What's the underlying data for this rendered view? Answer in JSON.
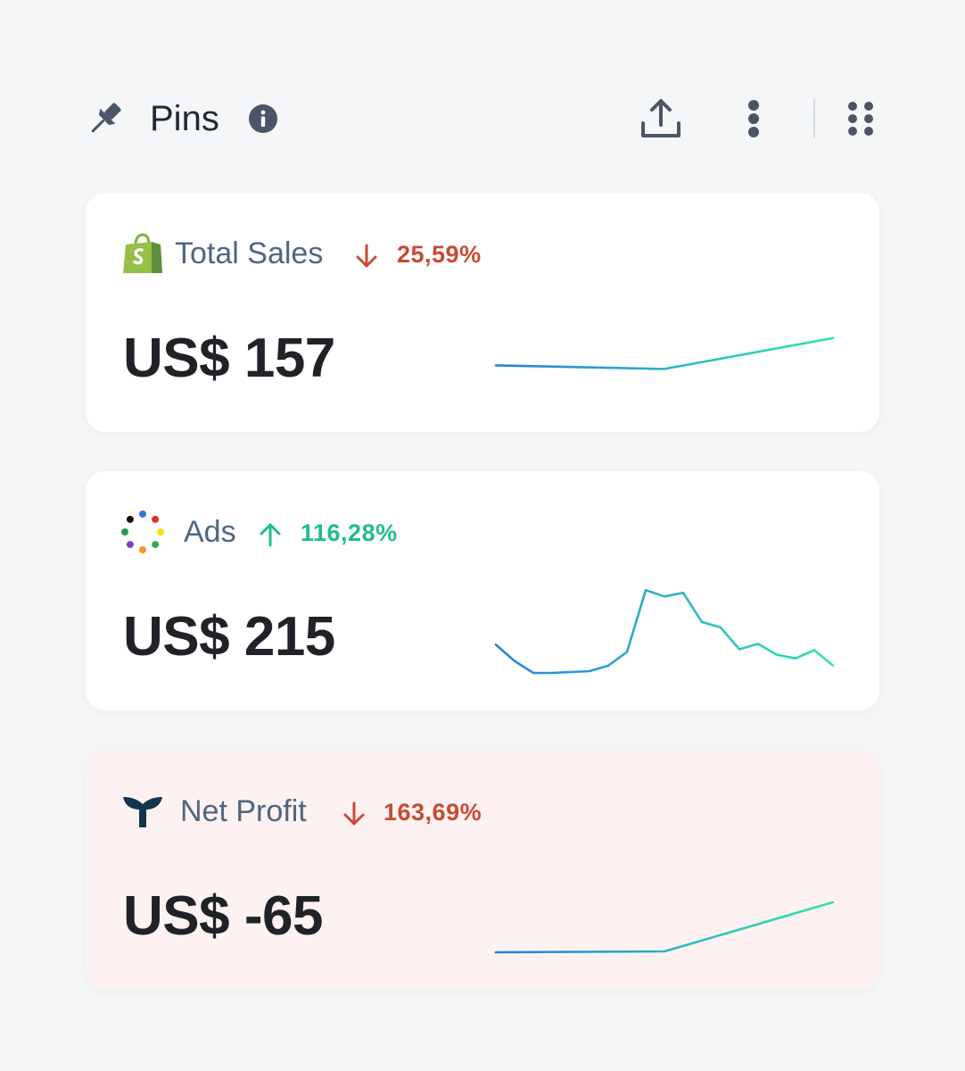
{
  "header": {
    "title": "Pins",
    "icons": {
      "pin": "pin-icon",
      "info": "info-icon",
      "share": "share-upload-icon",
      "more": "more-vertical-icon",
      "grid": "grid-dots-icon"
    }
  },
  "colors": {
    "down": "#c94a32",
    "up": "#1fbf86",
    "line_start": "#2a7fe0",
    "line_end": "#2ee6a8",
    "card_highlight_bg": "#fdf2f1"
  },
  "cards": [
    {
      "label": "Total Sales",
      "logo": "shopify-bag-icon",
      "trend": "down",
      "change": "25,59%",
      "value": "US$ 157",
      "sparkline": [
        0.32,
        0.28,
        0.62
      ]
    },
    {
      "label": "Ads",
      "logo": "colored-dots-ring-icon",
      "trend": "up",
      "change": "116,28%",
      "value": "US$ 215",
      "sparkline": [
        0.31,
        0.13,
        0.0,
        0.0,
        0.01,
        0.02,
        0.08,
        0.23,
        0.91,
        0.84,
        0.88,
        0.56,
        0.5,
        0.26,
        0.32,
        0.2,
        0.16,
        0.25,
        0.08
      ]
    },
    {
      "label": "Net Profit",
      "logo": "whale-tail-icon",
      "trend": "down",
      "change": "163,69%",
      "value": "US$ -65",
      "sparkline": [
        0.0,
        0.01,
        0.55
      ]
    }
  ]
}
